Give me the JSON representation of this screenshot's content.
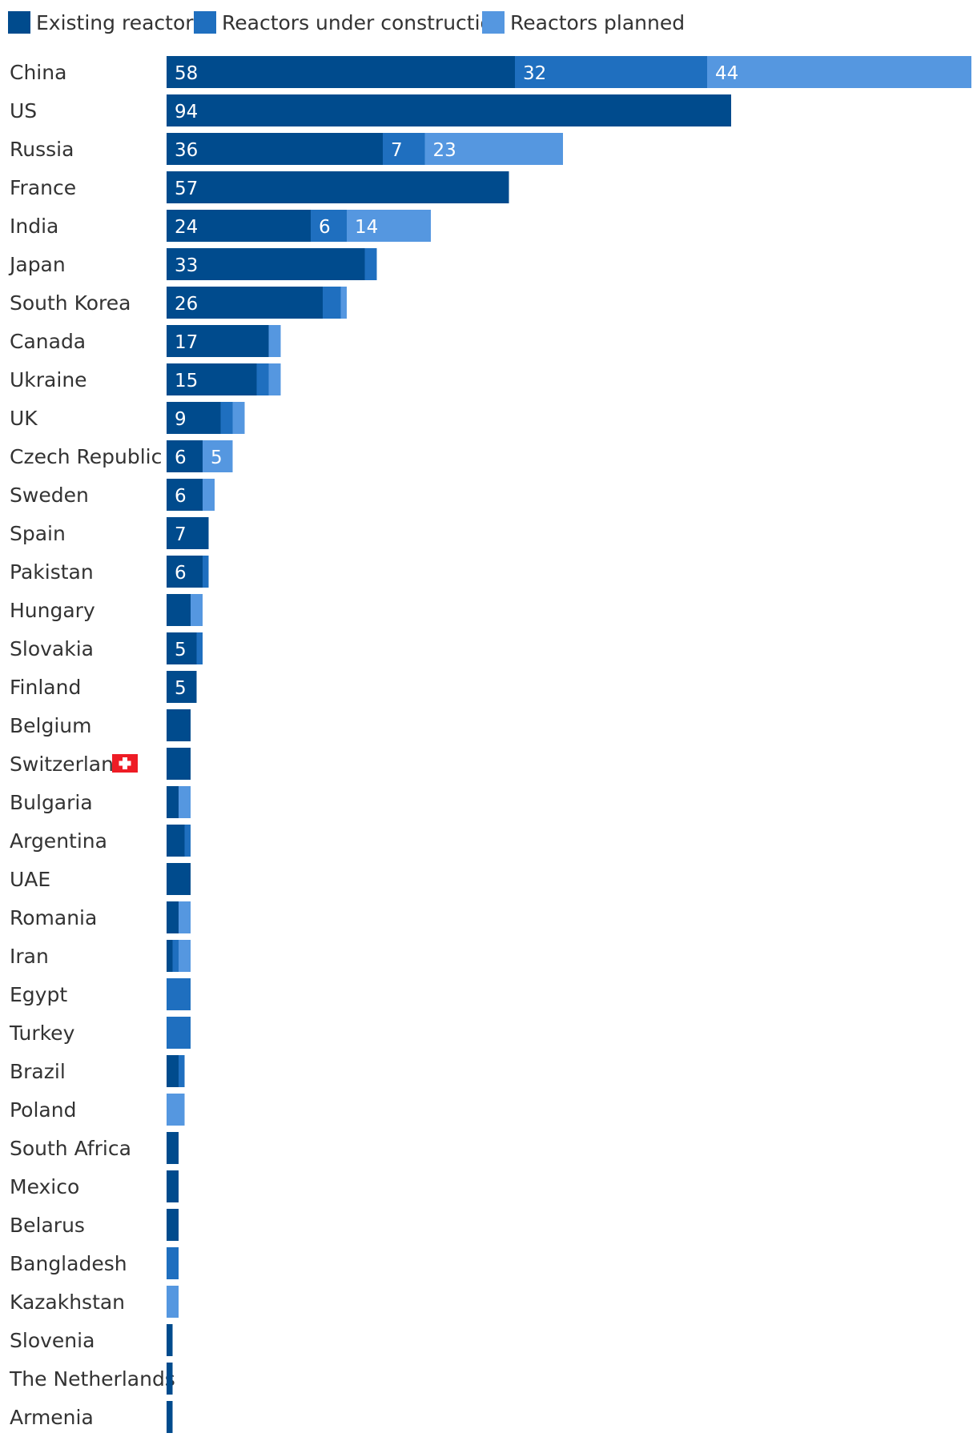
{
  "colors": {
    "existing": "#004b8d",
    "construction": "#1f6fbf",
    "planned": "#5597e0",
    "flag_red": "#ee1c25",
    "flag_white": "#ffffff"
  },
  "chart_data": {
    "type": "bar",
    "orientation": "horizontal",
    "stacked": true,
    "legend_position": "top-left",
    "grid": false,
    "xlim": [
      0,
      134
    ],
    "categories": [
      "China",
      "US",
      "Russia",
      "France",
      "India",
      "Japan",
      "South Korea",
      "Canada",
      "Ukraine",
      "UK",
      "Czech Republic",
      "Sweden",
      "Spain",
      "Pakistan",
      "Hungary",
      "Slovakia",
      "Finland",
      "Belgium",
      "Switzerland",
      "Bulgaria",
      "Argentina",
      "UAE",
      "Romania",
      "Iran",
      "Egypt",
      "Turkey",
      "Brazil",
      "Poland",
      "South Africa",
      "Mexico",
      "Belarus",
      "Bangladesh",
      "Kazakhstan",
      "Slovenia",
      "The Netherlands",
      "Armenia"
    ],
    "series": [
      {
        "name": "Existing reactors",
        "color_key": "existing",
        "values": [
          58,
          94,
          36,
          57,
          24,
          33,
          26,
          17,
          15,
          9,
          6,
          6,
          7,
          6,
          4,
          5,
          5,
          4,
          4,
          2,
          3,
          4,
          2,
          1,
          0,
          0,
          2,
          0,
          2,
          2,
          2,
          0,
          0,
          1,
          1,
          1
        ]
      },
      {
        "name": "Reactors under construction",
        "color_key": "construction",
        "values": [
          32,
          0,
          7,
          0,
          6,
          2,
          3,
          0,
          2,
          2,
          0,
          0,
          0,
          1,
          0,
          1,
          0,
          0,
          0,
          0,
          1,
          0,
          0,
          1,
          4,
          4,
          1,
          0,
          0,
          0,
          0,
          2,
          0,
          0,
          0,
          0
        ]
      },
      {
        "name": "Reactors planned",
        "color_key": "planned",
        "values": [
          44,
          0,
          23,
          0,
          14,
          0,
          1,
          2,
          2,
          2,
          5,
          2,
          0,
          0,
          2,
          0,
          0,
          0,
          0,
          2,
          0,
          0,
          2,
          2,
          0,
          0,
          0,
          3,
          0,
          0,
          0,
          0,
          2,
          0,
          0,
          0
        ]
      }
    ],
    "label_threshold": 5,
    "flag_icon": {
      "category": "Switzerland",
      "name": "swiss-flag-icon"
    }
  }
}
